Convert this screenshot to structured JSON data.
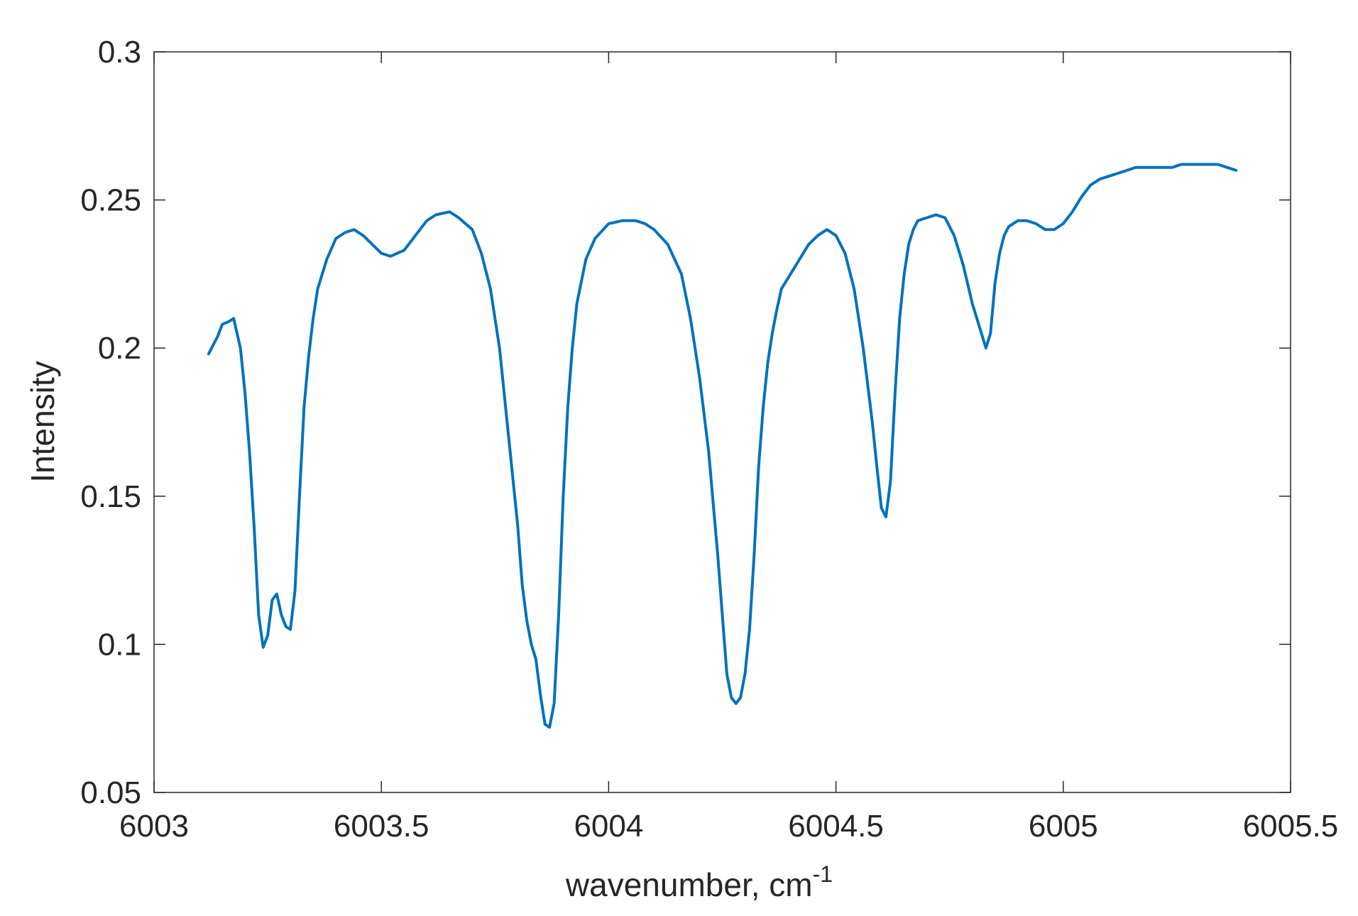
{
  "chart_data": {
    "type": "line",
    "title": "",
    "xlabel": "wavenumber, cm",
    "xlabel_superscript": "-1",
    "ylabel": "Intensity",
    "xlim": [
      6003,
      6005.5
    ],
    "ylim": [
      0.05,
      0.3
    ],
    "xticks": [
      6003,
      6003.5,
      6004,
      6004.5,
      6005,
      6005.5
    ],
    "xtick_labels": [
      "6003",
      "6003.5",
      "6004",
      "6004.5",
      "6005",
      "6005.5"
    ],
    "yticks": [
      0.05,
      0.1,
      0.15,
      0.2,
      0.25,
      0.3
    ],
    "ytick_labels": [
      "0.05",
      "0.1",
      "0.15",
      "0.2",
      "0.25",
      "0.3"
    ],
    "grid": false,
    "line_color": "#0072BD",
    "series": [
      {
        "x": [
          6003.12,
          6003.14,
          6003.15,
          6003.165,
          6003.175,
          6003.19,
          6003.2,
          6003.21,
          6003.22,
          6003.23,
          6003.24,
          6003.25,
          6003.26,
          6003.27,
          6003.28,
          6003.29,
          6003.3,
          6003.31,
          6003.32,
          6003.33,
          6003.34,
          6003.35,
          6003.36,
          6003.38,
          6003.4,
          6003.42,
          6003.44,
          6003.46,
          6003.48,
          6003.5,
          6003.52,
          6003.55,
          6003.57,
          6003.6,
          6003.62,
          6003.65,
          6003.67,
          6003.7,
          6003.72,
          6003.74,
          6003.76,
          6003.78,
          6003.8,
          6003.81,
          6003.82,
          6003.83,
          6003.84,
          6003.85,
          6003.86,
          6003.87,
          6003.88,
          6003.89,
          6003.9,
          6003.91,
          6003.92,
          6003.93,
          6003.95,
          6003.97,
          6004.0,
          6004.03,
          6004.06,
          6004.08,
          6004.1,
          6004.13,
          6004.16,
          6004.18,
          6004.2,
          6004.22,
          6004.24,
          6004.25,
          6004.26,
          6004.27,
          6004.28,
          6004.29,
          6004.3,
          6004.31,
          6004.32,
          6004.33,
          6004.34,
          6004.35,
          6004.36,
          6004.37,
          6004.38,
          6004.4,
          6004.42,
          6004.44,
          6004.46,
          6004.48,
          6004.5,
          6004.52,
          6004.54,
          6004.56,
          6004.58,
          6004.59,
          6004.6,
          6004.61,
          6004.62,
          6004.63,
          6004.64,
          6004.65,
          6004.66,
          6004.67,
          6004.68,
          6004.7,
          6004.72,
          6004.74,
          6004.76,
          6004.78,
          6004.8,
          6004.82,
          6004.83,
          6004.84,
          6004.85,
          6004.86,
          6004.87,
          6004.88,
          6004.9,
          6004.92,
          6004.94,
          6004.96,
          6004.98,
          6005.0,
          6005.02,
          6005.04,
          6005.06,
          6005.08,
          6005.1,
          6005.12,
          6005.14,
          6005.16,
          6005.18,
          6005.2,
          6005.22,
          6005.24,
          6005.26,
          6005.28,
          6005.3,
          6005.32,
          6005.34,
          6005.36,
          6005.38
        ],
        "y": [
          0.198,
          0.204,
          0.208,
          0.209,
          0.21,
          0.2,
          0.185,
          0.165,
          0.14,
          0.11,
          0.099,
          0.103,
          0.115,
          0.117,
          0.11,
          0.106,
          0.105,
          0.118,
          0.15,
          0.18,
          0.197,
          0.21,
          0.22,
          0.23,
          0.237,
          0.239,
          0.24,
          0.238,
          0.235,
          0.232,
          0.231,
          0.233,
          0.237,
          0.243,
          0.245,
          0.246,
          0.244,
          0.24,
          0.232,
          0.22,
          0.2,
          0.17,
          0.14,
          0.12,
          0.108,
          0.1,
          0.095,
          0.083,
          0.073,
          0.072,
          0.08,
          0.11,
          0.15,
          0.18,
          0.2,
          0.215,
          0.23,
          0.237,
          0.242,
          0.243,
          0.243,
          0.242,
          0.24,
          0.235,
          0.225,
          0.21,
          0.19,
          0.165,
          0.13,
          0.11,
          0.09,
          0.082,
          0.08,
          0.082,
          0.09,
          0.105,
          0.13,
          0.16,
          0.18,
          0.195,
          0.205,
          0.213,
          0.22,
          0.225,
          0.23,
          0.235,
          0.238,
          0.24,
          0.238,
          0.232,
          0.22,
          0.2,
          0.175,
          0.16,
          0.146,
          0.143,
          0.155,
          0.185,
          0.21,
          0.225,
          0.235,
          0.24,
          0.243,
          0.244,
          0.245,
          0.244,
          0.238,
          0.228,
          0.215,
          0.205,
          0.2,
          0.205,
          0.222,
          0.232,
          0.238,
          0.241,
          0.243,
          0.243,
          0.242,
          0.24,
          0.24,
          0.242,
          0.246,
          0.251,
          0.255,
          0.257,
          0.258,
          0.259,
          0.26,
          0.261,
          0.261,
          0.261,
          0.261,
          0.261,
          0.262,
          0.262,
          0.262,
          0.262,
          0.262,
          0.261,
          0.26
        ]
      }
    ]
  }
}
